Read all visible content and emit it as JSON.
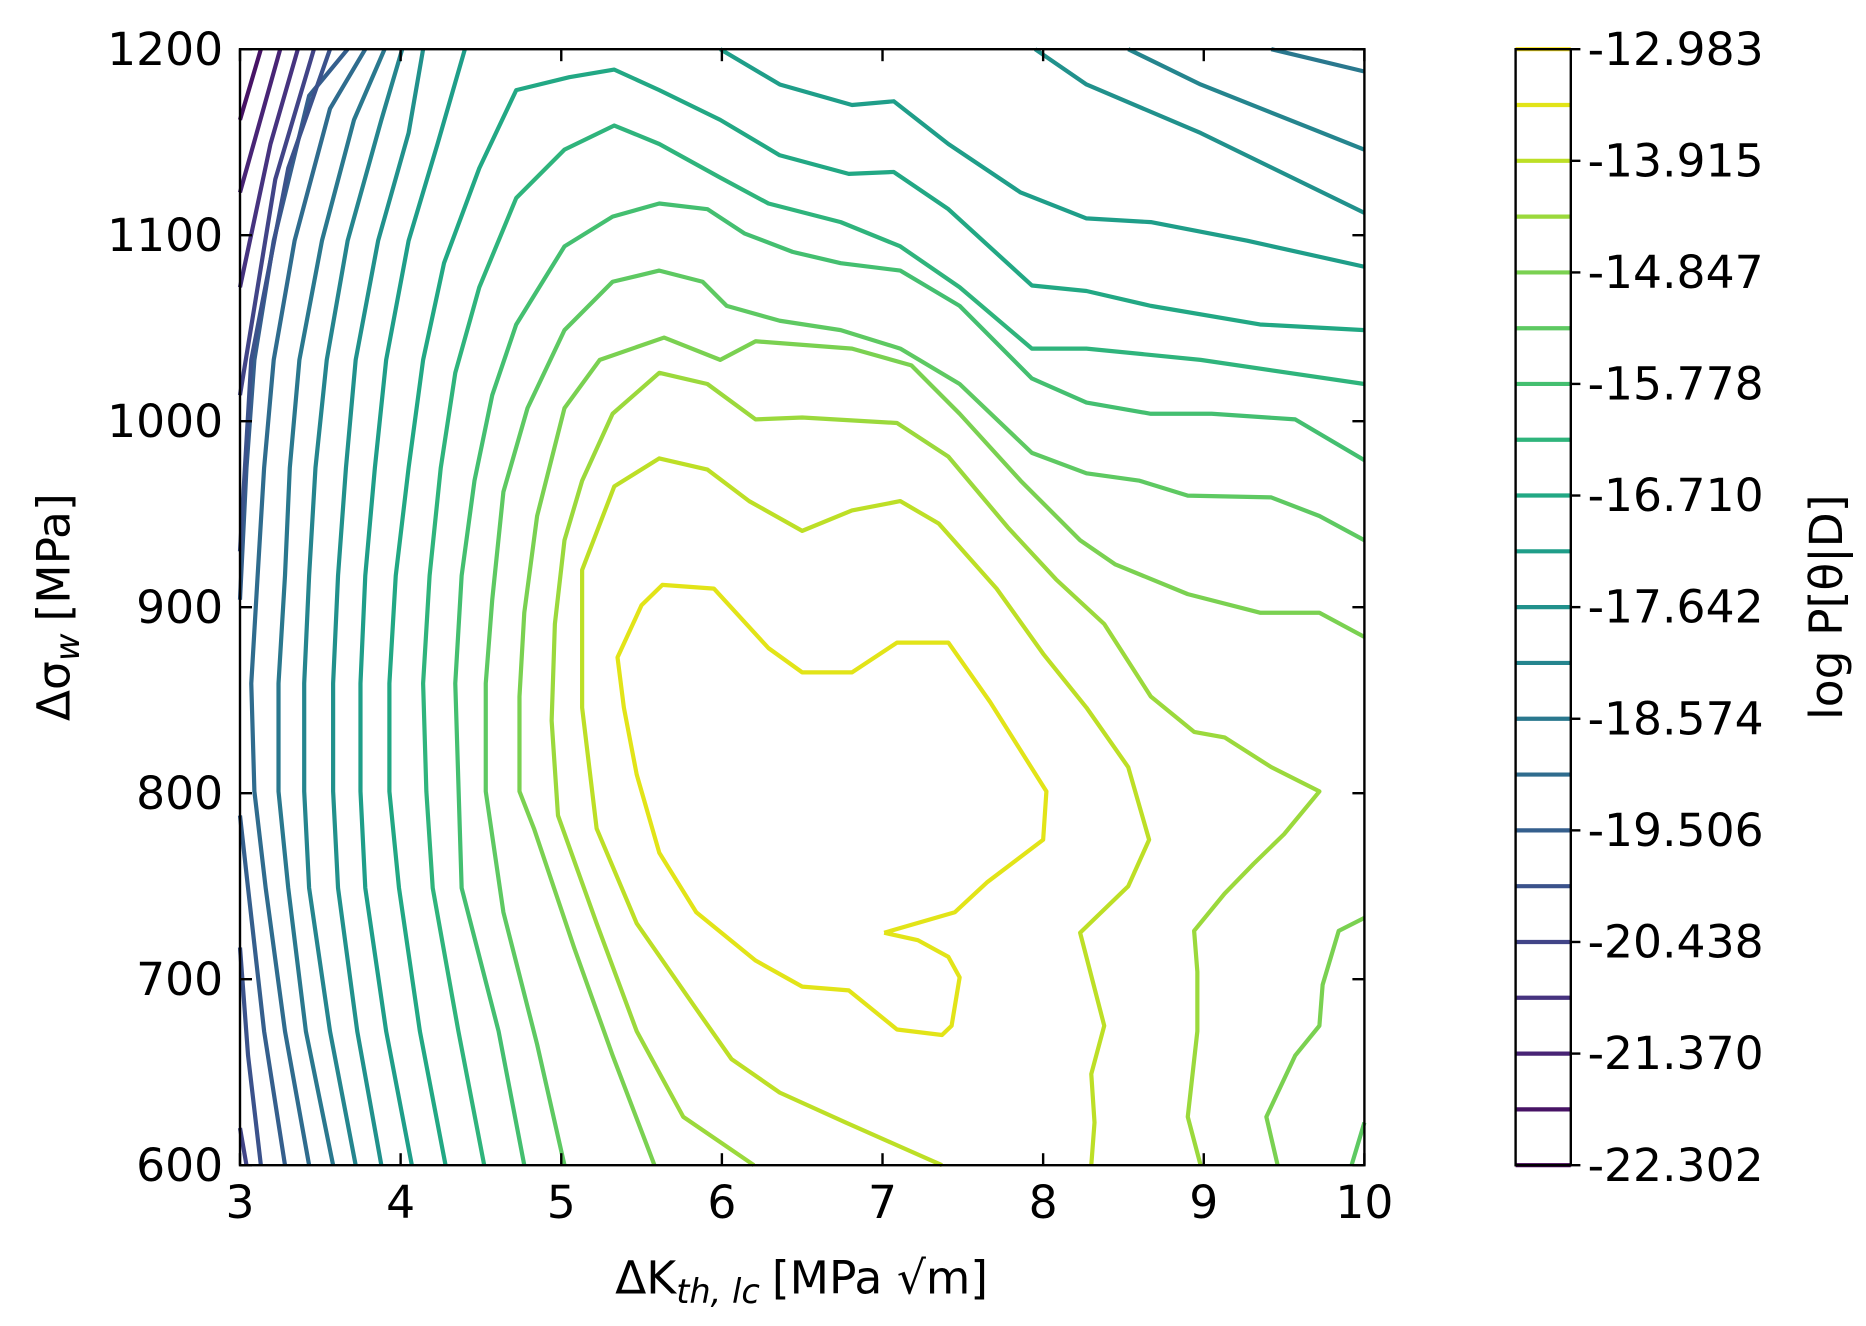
{
  "chart_data": {
    "type": "contour",
    "xlabel": {
      "base": "ΔK",
      "sub": "th, lc",
      "unit": "[MPa √m]"
    },
    "ylabel": {
      "base": "Δσ",
      "sub": "w",
      "unit": "[MPa]"
    },
    "xlim": [
      3,
      10
    ],
    "ylim": [
      600,
      1200
    ],
    "xticks": [
      3,
      4,
      5,
      6,
      7,
      8,
      9,
      10
    ],
    "yticks": [
      600,
      700,
      800,
      900,
      1000,
      1100,
      1200
    ],
    "series": [
      {
        "color": "#e2e418",
        "x": [
          7.01,
          7.45,
          7.65,
          8.0,
          8.02,
          7.67,
          7.41,
          7.09,
          6.81,
          6.5,
          6.29,
          5.95,
          5.63,
          5.5,
          5.35,
          5.39,
          5.47,
          5.61,
          5.84,
          6.21,
          6.5,
          6.79,
          7.09,
          7.37,
          7.43,
          7.48,
          7.41,
          7.22,
          7.01
        ],
        "y": [
          725,
          736,
          752,
          775,
          801,
          849,
          881,
          881,
          865,
          865,
          878,
          910,
          912,
          901,
          873,
          846,
          810,
          768,
          736,
          710,
          696,
          694,
          673,
          670,
          675,
          701,
          712,
          721,
          725
        ]
      },
      {
        "color": "#bddf26",
        "x": [
          7.37,
          6.77,
          6.36,
          6.06,
          5.84,
          5.47,
          5.22,
          5.13,
          5.13,
          5.33,
          5.61,
          5.91,
          6.17,
          6.5,
          6.81,
          7.11,
          7.35,
          7.71,
          8.0,
          8.27,
          8.53,
          8.66,
          8.53,
          8.23,
          8.38,
          8.3,
          8.32,
          8.3
        ],
        "y": [
          600,
          623,
          639,
          657,
          684,
          730,
          781,
          846,
          920,
          965,
          980,
          974,
          957,
          941,
          952,
          957,
          945,
          910,
          875,
          846,
          814,
          775,
          750,
          725,
          675,
          649,
          623,
          600
        ]
      },
      {
        "color": "#9bd93c",
        "x": [
          6.2,
          5.76,
          5.47,
          5.22,
          4.98,
          4.94,
          4.96,
          5.02,
          5.13,
          5.32,
          5.61,
          5.91,
          6.21,
          6.5,
          7.09,
          7.41,
          7.78,
          8.08,
          8.38,
          8.67,
          8.94,
          9.13,
          9.42,
          9.72,
          9.5,
          9.31,
          9.13,
          8.94,
          8.96,
          8.96,
          8.9,
          8.98
        ],
        "y": [
          600,
          626,
          672,
          730,
          788,
          839,
          891,
          936,
          968,
          1004,
          1026,
          1020,
          1001,
          1002,
          999,
          981,
          943,
          915,
          891,
          852,
          833,
          830,
          814,
          801,
          778,
          762,
          746,
          726,
          704,
          672,
          626,
          600
        ]
      },
      {
        "color": "#7ad151",
        "x": [
          5.58,
          5.32,
          5.08,
          4.83,
          4.74,
          4.74,
          4.77,
          4.85,
          5.02,
          5.24,
          5.64,
          5.99,
          6.21,
          6.81,
          7.18,
          7.48,
          7.86,
          8.23,
          8.45,
          8.9,
          9.35,
          9.72,
          10.0,
          null,
          9.46,
          9.39,
          9.57,
          9.72,
          9.74,
          9.84,
          10.0
        ],
        "y": [
          600,
          659,
          717,
          781,
          801,
          852,
          897,
          949,
          1007,
          1033,
          1045,
          1033,
          1043,
          1039,
          1030,
          1004,
          968,
          936,
          923,
          907,
          897,
          897,
          884,
          null,
          600,
          626,
          659,
          675,
          697,
          726,
          733
        ]
      },
      {
        "color": "#5ec962",
        "x": [
          5.02,
          4.85,
          4.64,
          4.53,
          4.53,
          4.57,
          4.64,
          4.79,
          5.02,
          5.32,
          5.61,
          5.88,
          6.03,
          6.36,
          6.74,
          7.11,
          7.48,
          7.93,
          8.27,
          8.6,
          8.9,
          9.42,
          9.72,
          10.0,
          null,
          9.92,
          10.0
        ],
        "y": [
          600,
          665,
          736,
          801,
          859,
          904,
          962,
          1007,
          1049,
          1075,
          1081,
          1075,
          1062,
          1054,
          1049,
          1039,
          1020,
          983,
          972,
          968,
          960,
          959,
          949,
          936,
          null,
          600,
          623
        ]
      },
      {
        "color": "#44bf70",
        "x": [
          4.77,
          4.61,
          4.38,
          4.34,
          4.38,
          4.46,
          4.57,
          4.72,
          5.02,
          5.32,
          5.61,
          5.91,
          6.14,
          6.44,
          6.74,
          7.11,
          7.48,
          7.93,
          8.27,
          8.67,
          9.05,
          9.57,
          10.0
        ],
        "y": [
          600,
          672,
          749,
          859,
          917,
          968,
          1014,
          1052,
          1094,
          1110,
          1117,
          1114,
          1101,
          1091,
          1085,
          1081,
          1062,
          1023,
          1010,
          1004,
          1004,
          1001,
          979
        ]
      },
      {
        "color": "#2fb47c",
        "x": [
          4.52,
          4.36,
          4.2,
          4.16,
          4.14,
          4.18,
          4.25,
          4.34,
          4.49,
          4.72,
          5.02,
          5.33,
          5.61,
          5.99,
          6.29,
          6.74,
          7.11,
          7.48,
          7.93,
          8.27,
          8.98,
          10.0
        ],
        "y": [
          600,
          672,
          749,
          801,
          859,
          917,
          975,
          1026,
          1072,
          1120,
          1146,
          1159,
          1149,
          1131,
          1117,
          1107,
          1094,
          1072,
          1039,
          1039,
          1033,
          1020
        ]
      },
      {
        "color": "#22a884",
        "x": [
          4.28,
          4.12,
          3.99,
          3.93,
          3.93,
          3.97,
          4.05,
          4.14,
          4.27,
          4.49,
          4.72,
          5.05,
          5.33,
          5.61,
          5.99,
          6.36,
          6.79,
          7.07,
          7.41,
          7.93,
          8.27,
          8.67,
          9.35,
          10.0
        ],
        "y": [
          600,
          672,
          749,
          801,
          859,
          917,
          975,
          1033,
          1085,
          1136,
          1178,
          1185,
          1189,
          1178,
          1162,
          1143,
          1133,
          1134,
          1114,
          1073,
          1070,
          1062,
          1052,
          1049
        ]
      },
      {
        "color": "#1f9e89",
        "x": [
          4.07,
          3.91,
          3.78,
          3.75,
          3.75,
          3.78,
          3.84,
          3.91,
          4.05,
          4.23,
          4.4,
          null,
          5.99,
          6.36,
          6.81,
          7.07,
          7.41,
          7.86,
          8.27,
          8.67,
          9.27,
          10.0
        ],
        "y": [
          600,
          672,
          749,
          801,
          859,
          917,
          975,
          1033,
          1097,
          1149,
          1200,
          null,
          1200,
          1181,
          1170,
          1172,
          1149,
          1123,
          1109,
          1107,
          1097,
          1083
        ]
      },
      {
        "color": "#21918c",
        "x": [
          3.88,
          3.73,
          3.61,
          3.58,
          3.58,
          3.61,
          3.66,
          3.72,
          3.86,
          4.05,
          4.14,
          null,
          7.95,
          8.27,
          8.98,
          10.0
        ],
        "y": [
          600,
          672,
          749,
          801,
          859,
          917,
          975,
          1033,
          1097,
          1155,
          1200,
          null,
          1200,
          1181,
          1155,
          1112
        ]
      },
      {
        "color": "#25858e",
        "x": [
          3.72,
          3.56,
          3.43,
          3.4,
          3.4,
          3.43,
          3.47,
          3.54,
          3.67,
          3.88,
          4.01,
          null,
          8.53,
          8.98,
          10.0
        ],
        "y": [
          600,
          672,
          749,
          801,
          859,
          917,
          975,
          1033,
          1097,
          1162,
          1200,
          null,
          1200,
          1181,
          1146
        ]
      },
      {
        "color": "#2a788e",
        "x": [
          3.58,
          3.41,
          3.3,
          3.24,
          3.24,
          3.28,
          3.31,
          3.37,
          3.51,
          3.71,
          3.9,
          null,
          9.42,
          10.0
        ],
        "y": [
          600,
          672,
          749,
          801,
          859,
          917,
          975,
          1033,
          1097,
          1162,
          1200,
          null,
          1200,
          1188
        ]
      },
      {
        "color": "#2f6c8e",
        "x": [
          3.43,
          3.28,
          3.16,
          3.09,
          3.07,
          3.11,
          3.15,
          3.21,
          3.34,
          3.56,
          3.78
        ],
        "y": [
          600,
          672,
          749,
          801,
          859,
          917,
          975,
          1033,
          1097,
          1168,
          1200
        ]
      },
      {
        "color": "#355f8d",
        "x": [
          3.28,
          3.15,
          3.05,
          3.0,
          null,
          3.0,
          3.04,
          3.09,
          3.21,
          3.43,
          3.67
        ],
        "y": [
          600,
          672,
          749,
          788,
          null,
          904,
          975,
          1033,
          1097,
          1175,
          1200
        ]
      },
      {
        "color": "#3b528b",
        "x": [
          3.13,
          3.05,
          3.0,
          null,
          3.0,
          3.07,
          3.3,
          3.56
        ],
        "y": [
          600,
          659,
          717,
          null,
          930,
          1033,
          1136,
          1200
        ]
      },
      {
        "color": "#414487",
        "x": [
          3.04,
          3.0,
          null,
          3.0,
          3.22,
          3.46
        ],
        "y": [
          600,
          620,
          null,
          1014,
          1130,
          1200
        ]
      },
      {
        "color": "#46337f",
        "x": [
          3.0,
          3.19,
          3.36
        ],
        "y": [
          1072,
          1149,
          1200
        ]
      },
      {
        "color": "#482475",
        "x": [
          3.0,
          3.25
        ],
        "y": [
          1123,
          1200
        ]
      },
      {
        "color": "#471365",
        "x": [
          3.0,
          3.13
        ],
        "y": [
          1162,
          1200
        ]
      }
    ],
    "colorbar": {
      "label": "log P[θ|D]",
      "clim": [
        -22.302,
        -12.983
      ],
      "levels": [
        -12.983,
        -13.449,
        -13.915,
        -14.381,
        -14.847,
        -15.313,
        -15.778,
        -16.244,
        -16.71,
        -17.176,
        -17.642,
        -18.108,
        -18.574,
        -19.04,
        -19.506,
        -19.972,
        -20.438,
        -20.904,
        -21.37,
        -21.836,
        -22.302
      ],
      "colors": [
        "#fde725",
        "#e2e418",
        "#bddf26",
        "#9bd93c",
        "#7ad151",
        "#5ec962",
        "#44bf70",
        "#2fb47c",
        "#22a884",
        "#1f9e89",
        "#21918c",
        "#25858e",
        "#2a788e",
        "#2f6c8e",
        "#355f8d",
        "#3b528b",
        "#414487",
        "#46337f",
        "#482475",
        "#471365",
        "#440154"
      ],
      "ticks": [
        -12.983,
        -13.915,
        -14.847,
        -15.778,
        {
          "value": -16.71,
          "label": "-16.710"
        },
        -17.642,
        -18.574,
        -19.506,
        -20.438,
        {
          "value": -21.37,
          "label": "-21.370"
        },
        -22.302
      ]
    }
  }
}
